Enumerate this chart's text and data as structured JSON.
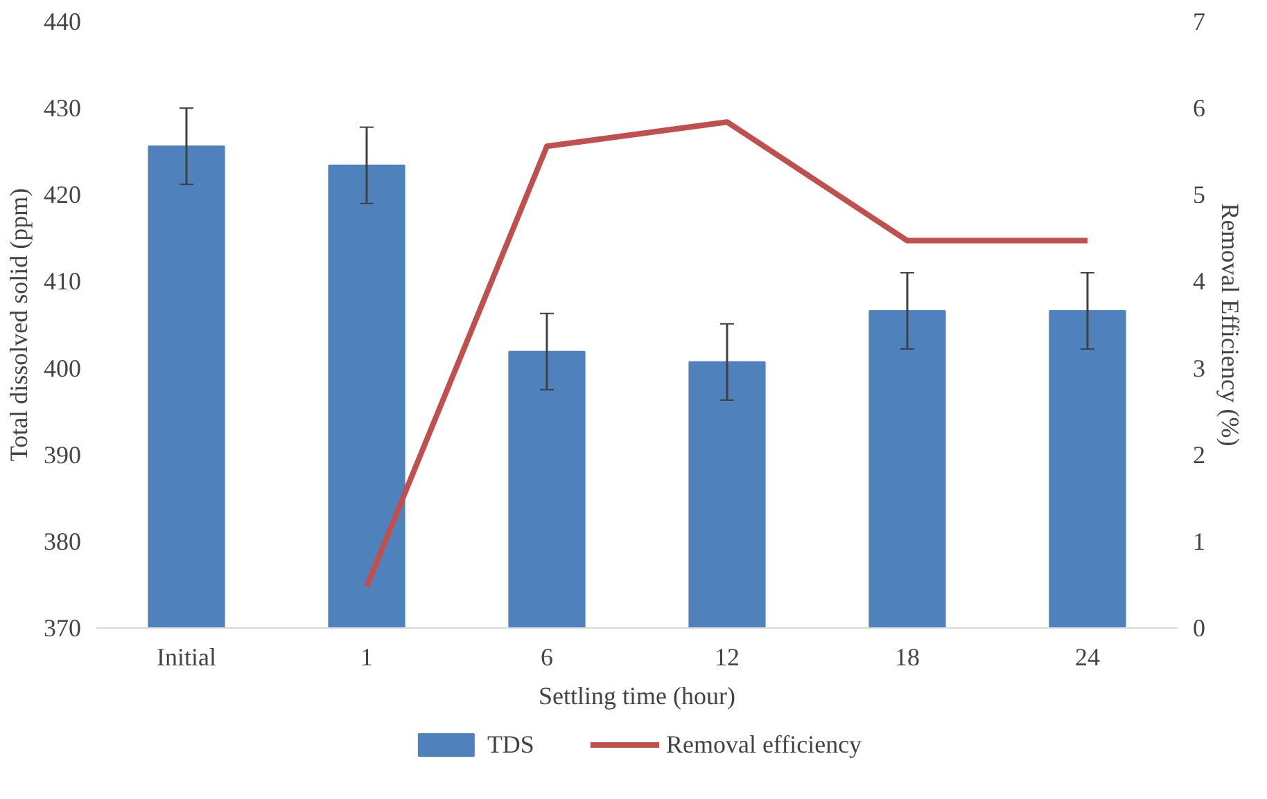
{
  "chart_data": {
    "type": "bar",
    "xlabel": "Settling time (hour)",
    "ylabel": "Total dissolved solid (ppm)",
    "y2label": "Removal Efficiency (%)",
    "categories": [
      "Initial",
      "1",
      "6",
      "12",
      "18",
      "24"
    ],
    "series": [
      {
        "name": "TDS",
        "color": "#4f81bd",
        "values": [
          425.6,
          423.4,
          401.9,
          400.7,
          406.6,
          406.6
        ],
        "errors": [
          4.4,
          4.4,
          4.4,
          4.4,
          4.4,
          4.4
        ]
      },
      {
        "name": "Removal efficiency",
        "type": "line",
        "axis": "y2",
        "color": "#c0504d",
        "values": [
          null,
          0.48,
          5.56,
          5.84,
          4.47,
          4.47
        ]
      }
    ],
    "ylim": [
      370,
      440
    ],
    "yticks": [
      370,
      380,
      390,
      400,
      410,
      420,
      430,
      440
    ],
    "y2lim": [
      0,
      7
    ],
    "y2ticks": [
      0,
      1,
      2,
      3,
      4,
      5,
      6,
      7
    ],
    "grid": false,
    "legend": "bottom"
  }
}
